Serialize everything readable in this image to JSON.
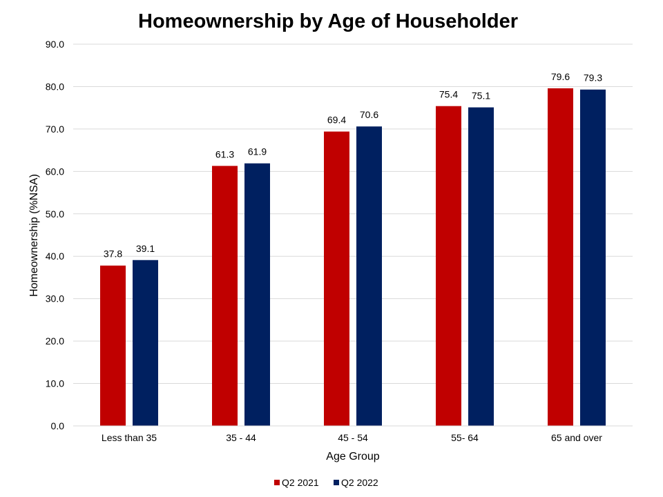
{
  "chart_data": {
    "type": "bar",
    "title": "Homeownership by Age of Householder",
    "xlabel": "Age Group",
    "ylabel": "Homeownership (%NSA)",
    "categories": [
      "Less than 35",
      "35 - 44",
      "45 - 54",
      "55- 64",
      "65 and over"
    ],
    "series": [
      {
        "name": "Q2 2021",
        "color": "#c00000",
        "values": [
          37.8,
          61.3,
          69.4,
          75.4,
          79.6
        ],
        "labels": [
          "37.8",
          "61.3",
          "69.4",
          "75.4",
          "79.6"
        ]
      },
      {
        "name": "Q2 2022",
        "color": "#002060",
        "values": [
          39.1,
          61.9,
          70.6,
          75.1,
          79.3
        ],
        "labels": [
          "39.1",
          "61.9",
          "70.6",
          "75.1",
          "79.3"
        ]
      }
    ],
    "ylim": [
      0,
      90
    ],
    "yticks": [
      "0.0",
      "10.0",
      "20.0",
      "30.0",
      "40.0",
      "50.0",
      "60.0",
      "70.0",
      "80.0",
      "90.0"
    ],
    "grid": true,
    "legend_position": "bottom"
  }
}
